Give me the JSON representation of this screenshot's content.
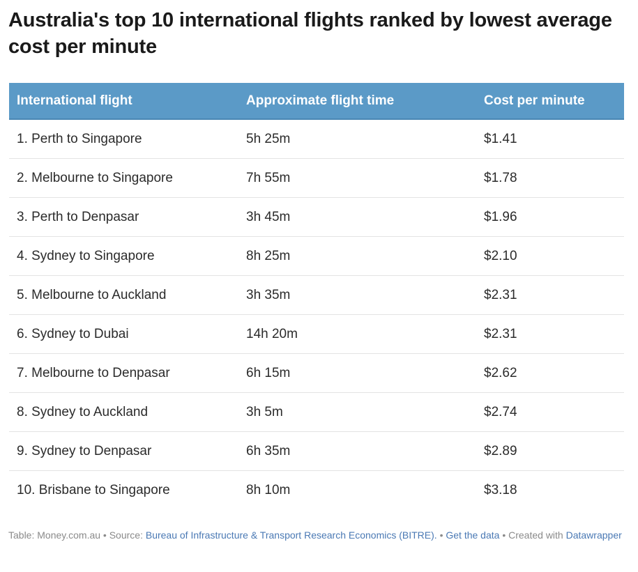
{
  "chart_data": {
    "type": "table",
    "title": "Australia's top 10 international flights ranked by lowest average cost per minute",
    "columns": [
      "International flight",
      "Approximate flight time",
      "Cost per minute"
    ],
    "rows": [
      [
        "1. Perth to Singapore",
        "5h 25m",
        "$1.41"
      ],
      [
        "2. Melbourne to Singapore",
        "7h 55m",
        "$1.78"
      ],
      [
        "3. Perth to Denpasar",
        "3h 45m",
        "$1.96"
      ],
      [
        "4. Sydney to Singapore",
        "8h 25m",
        "$2.10"
      ],
      [
        "5. Melbourne to Auckland",
        "3h 35m",
        "$2.31"
      ],
      [
        "6. Sydney to Dubai",
        "14h 20m",
        "$2.31"
      ],
      [
        "7. Melbourne to Denpasar",
        "6h 15m",
        "$2.62"
      ],
      [
        "8. Sydney to Auckland",
        "3h 5m",
        "$2.74"
      ],
      [
        "9. Sydney to Denpasar",
        "6h 35m",
        "$2.89"
      ],
      [
        "10. Brisbane to Singapore",
        "8h 10m",
        "$3.18"
      ]
    ]
  },
  "footer": {
    "prefix": "Table: Money.com.au • Source: ",
    "source_link": "Bureau of Infrastructure & Transport Research Economics (BITRE).",
    "sep1": " • ",
    "data_link": "Get the data",
    "created": " • Created with ",
    "tool_link": "Datawrapper"
  },
  "colors": {
    "header_bg": "#5b9ac7",
    "link": "#4a79b4"
  }
}
